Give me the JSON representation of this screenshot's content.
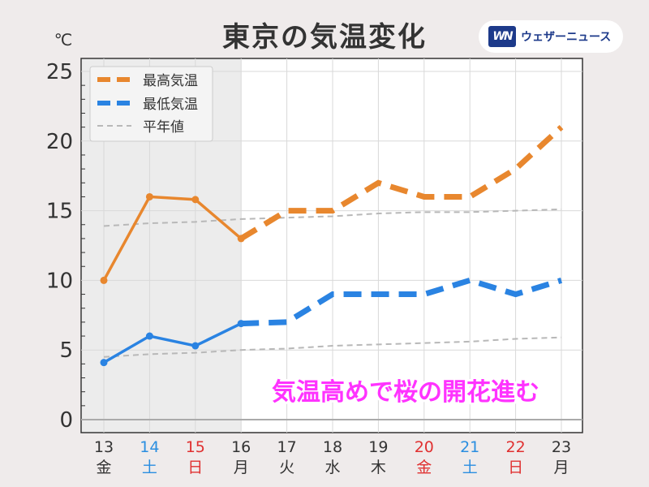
{
  "title": "東京の気温変化",
  "brand": {
    "logo_text": "WN",
    "name": "ウェザーニュース"
  },
  "annotation": "気温高めで桜の開花進む",
  "chart_data": {
    "type": "line",
    "unit_label": "℃",
    "ylim": [
      0,
      25
    ],
    "yticks": [
      0,
      5,
      10,
      15,
      20,
      25
    ],
    "grid": true,
    "legend_position": "top-left",
    "observed_through_day": "16",
    "days": [
      "13",
      "14",
      "15",
      "16",
      "17",
      "18",
      "19",
      "20",
      "21",
      "22",
      "23"
    ],
    "weekdays": [
      "金",
      "土",
      "日",
      "月",
      "火",
      "水",
      "木",
      "金",
      "土",
      "日",
      "月"
    ],
    "day_colors": [
      "#333333",
      "#2a8ee0",
      "#e03030",
      "#333333",
      "#333333",
      "#333333",
      "#333333",
      "#e03030",
      "#2a8ee0",
      "#e03030",
      "#333333"
    ],
    "series": [
      {
        "name": "最高気温",
        "color": "#e8872e",
        "values": [
          10,
          16,
          15.8,
          13,
          15,
          15,
          17,
          16,
          16,
          18,
          21
        ]
      },
      {
        "name": "最低気温",
        "color": "#2a83e2",
        "values": [
          4.1,
          6,
          5.3,
          6.9,
          7,
          9,
          9,
          9,
          10,
          9,
          10
        ]
      },
      {
        "name": "平年値",
        "color": "#b8b8b8",
        "values_high": [
          13.9,
          14.1,
          14.2,
          14.4,
          14.5,
          14.6,
          14.8,
          14.9,
          14.9,
          15,
          15.1
        ],
        "values_low": [
          4.5,
          4.7,
          4.8,
          5,
          5.1,
          5.3,
          5.4,
          5.5,
          5.6,
          5.8,
          5.9
        ]
      }
    ]
  }
}
